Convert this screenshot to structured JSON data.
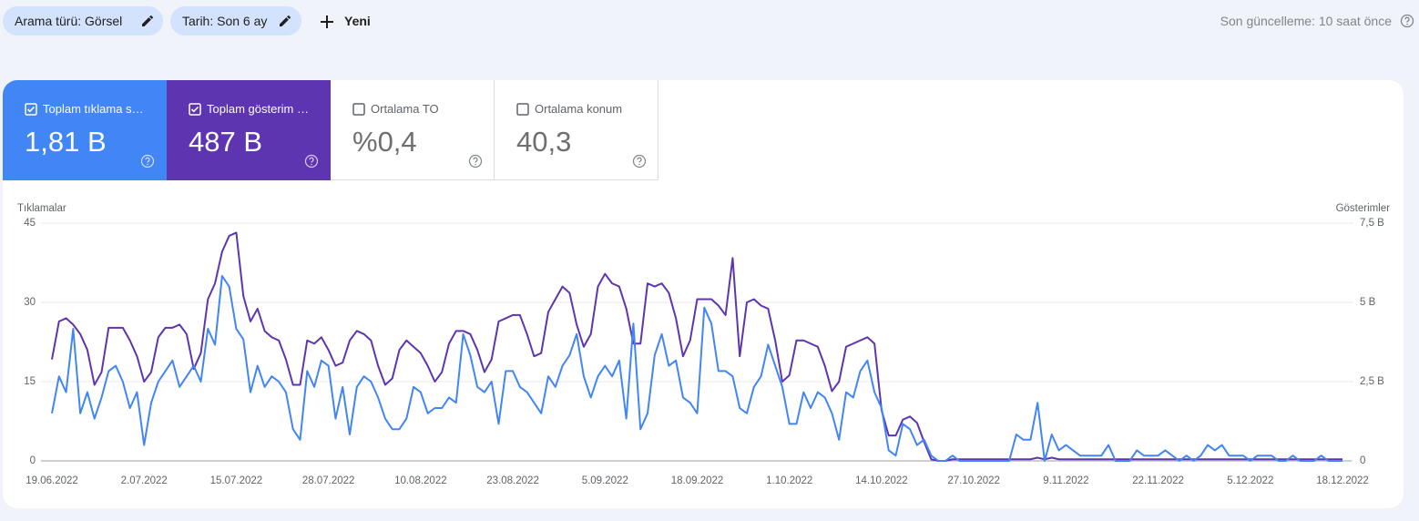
{
  "filters": [
    "Arama türü: Görsel",
    "Tarih: Son 6 ay"
  ],
  "new_button": "Yeni",
  "last_update": "Son güncelleme: 10 saat önce",
  "metrics": [
    {
      "label": "Toplam tıklama s…",
      "value": "1,81 B"
    },
    {
      "label": "Toplam gösterim …",
      "value": "487 B"
    },
    {
      "label": "Ortalama TO",
      "value": "%0,4"
    },
    {
      "label": "Ortalama konum",
      "value": "40,3"
    }
  ],
  "chart_data": {
    "type": "line",
    "categories": [
      "19.06.2022",
      null,
      null,
      null,
      null,
      null,
      null,
      null,
      null,
      null,
      null,
      null,
      null,
      "2.07.2022",
      null,
      null,
      null,
      null,
      null,
      null,
      null,
      null,
      null,
      null,
      null,
      null,
      "15.07.2022",
      null,
      null,
      null,
      null,
      null,
      null,
      null,
      null,
      null,
      null,
      null,
      null,
      "28.07.2022",
      null,
      null,
      null,
      null,
      null,
      null,
      null,
      null,
      null,
      null,
      null,
      null,
      "10.08.2022",
      null,
      null,
      null,
      null,
      null,
      null,
      null,
      null,
      null,
      null,
      null,
      null,
      "23.08.2022",
      null,
      null,
      null,
      null,
      null,
      null,
      null,
      null,
      null,
      null,
      null,
      null,
      "5.09.2022",
      null,
      null,
      null,
      null,
      null,
      null,
      null,
      null,
      null,
      null,
      null,
      null,
      "18.09.2022",
      null,
      null,
      null,
      null,
      null,
      null,
      null,
      null,
      null,
      null,
      null,
      null,
      "1.10.2022",
      null,
      null,
      null,
      null,
      null,
      null,
      null,
      null,
      null,
      null,
      null,
      null,
      "14.10.2022",
      null,
      null,
      null,
      null,
      null,
      null,
      null,
      null,
      null,
      null,
      null,
      null,
      "27.10.2022",
      null,
      null,
      null,
      null,
      null,
      null,
      null,
      null,
      null,
      null,
      null,
      null,
      "9.11.2022",
      null,
      null,
      null,
      null,
      null,
      null,
      null,
      null,
      null,
      null,
      null,
      null,
      "22.11.2022",
      null,
      null,
      null,
      null,
      null,
      null,
      null,
      null,
      null,
      null,
      null,
      null,
      "5.12.2022",
      null,
      null,
      null,
      null,
      null,
      null,
      null,
      null,
      null,
      null,
      null,
      null,
      "18.12.2022"
    ],
    "series": [
      {
        "name": "Tıklamalar",
        "color": "#4285f4",
        "axis": "y",
        "values": [
          9,
          16,
          13,
          25,
          9,
          13,
          8,
          12,
          17,
          18,
          15,
          10,
          13,
          3,
          11,
          15,
          17,
          19,
          14,
          16,
          18,
          15,
          25,
          22,
          35,
          33,
          25,
          23,
          13,
          18,
          14,
          16,
          15,
          13,
          6,
          4,
          17,
          14,
          19,
          18,
          8,
          14,
          5,
          14,
          16,
          15,
          12,
          8,
          6,
          6,
          8,
          14,
          13,
          9,
          10,
          10,
          12,
          11,
          24,
          20,
          14,
          13,
          15,
          7,
          17,
          17,
          14,
          13,
          11,
          9,
          16,
          14,
          18,
          20,
          24,
          16,
          12,
          16,
          18,
          16,
          19,
          8,
          26,
          6,
          9,
          20,
          24,
          18,
          19,
          12,
          11,
          9,
          29,
          26,
          17,
          17,
          16,
          10,
          9,
          14,
          16,
          22,
          18,
          14,
          7,
          7,
          13,
          10,
          13,
          12,
          9,
          4,
          13,
          12,
          17,
          19,
          13,
          10,
          2,
          1,
          7,
          6,
          3,
          4,
          1,
          0,
          0,
          1,
          0,
          0,
          0,
          0,
          0,
          0,
          0,
          0,
          5,
          4,
          4,
          11,
          0,
          5,
          2,
          3,
          2,
          1,
          1,
          1,
          1,
          3,
          0,
          0,
          0,
          2,
          1,
          1,
          1,
          2,
          1,
          0,
          1,
          0,
          1,
          3,
          2,
          3,
          1,
          1,
          1,
          0,
          1,
          1,
          1,
          0,
          0,
          1,
          0,
          0,
          0,
          1,
          0,
          0,
          0
        ]
      },
      {
        "name": "Gösterimler",
        "color": "#5e35b1",
        "axis": "y2",
        "values": [
          3.2,
          4.4,
          4.5,
          4.3,
          4.0,
          3.5,
          2.4,
          2.8,
          4.2,
          4.2,
          4.2,
          3.8,
          3.3,
          2.5,
          2.8,
          3.9,
          4.2,
          4.2,
          4.3,
          4.0,
          2.9,
          3.4,
          5.1,
          5.6,
          6.6,
          7.1,
          7.2,
          5.2,
          4.4,
          4.8,
          4.1,
          3.9,
          3.8,
          3.2,
          2.4,
          2.4,
          3.8,
          3.7,
          3.9,
          3.5,
          3.0,
          3.1,
          3.8,
          4.1,
          4.0,
          3.8,
          3.0,
          2.4,
          2.6,
          3.5,
          3.8,
          3.6,
          3.4,
          3.0,
          2.5,
          2.8,
          3.7,
          4.1,
          4.1,
          4.0,
          3.5,
          2.8,
          3.2,
          4.4,
          4.5,
          4.6,
          4.6,
          4.0,
          3.3,
          3.4,
          4.7,
          5.1,
          5.5,
          5.3,
          4.3,
          3.6,
          4.0,
          5.5,
          5.9,
          5.6,
          5.5,
          4.8,
          3.7,
          3.7,
          5.6,
          5.5,
          5.6,
          5.3,
          4.5,
          3.3,
          3.8,
          5.1,
          5.1,
          5.1,
          4.9,
          4.6,
          6.4,
          3.3,
          5.0,
          5.1,
          4.9,
          4.8,
          3.8,
          2.5,
          2.7,
          3.8,
          3.8,
          3.7,
          3.6,
          3.0,
          2.2,
          2.5,
          3.6,
          3.7,
          3.8,
          3.9,
          3.7,
          1.6,
          0.8,
          0.8,
          1.3,
          1.4,
          1.2,
          0.6,
          0.05,
          0,
          0,
          0.05,
          0.05,
          0.05,
          0.05,
          0.05,
          0.05,
          0.05,
          0.05,
          0.05,
          0.05,
          0.05,
          0.05,
          0.1,
          0.05,
          0.1,
          0.05,
          0.05,
          0.05,
          0.05,
          0.05,
          0.05,
          0.05,
          0.05,
          0.05,
          0.05,
          0.05,
          0.05,
          0.05,
          0.05,
          0.05,
          0.05,
          0.05,
          0.05,
          0.05,
          0.05,
          0.05,
          0.05,
          0.05,
          0.05,
          0.05,
          0.05,
          0.05,
          0.05,
          0.05,
          0.05,
          0.05,
          0.05,
          0.05,
          0.05,
          0.05,
          0.05,
          0.05,
          0.05,
          0.05,
          0.05,
          0.05
        ]
      }
    ],
    "ylim": [
      0,
      45
    ],
    "yticks": [
      0,
      15,
      30,
      45
    ],
    "y2lim": [
      0,
      7.5
    ],
    "y2ticks": [
      0,
      {
        "value": 2.5,
        "label": "2,5 B"
      },
      {
        "value": 5,
        "label": "5 B"
      },
      {
        "value": 7.5,
        "label": "7,5 B"
      }
    ],
    "grid": true
  }
}
